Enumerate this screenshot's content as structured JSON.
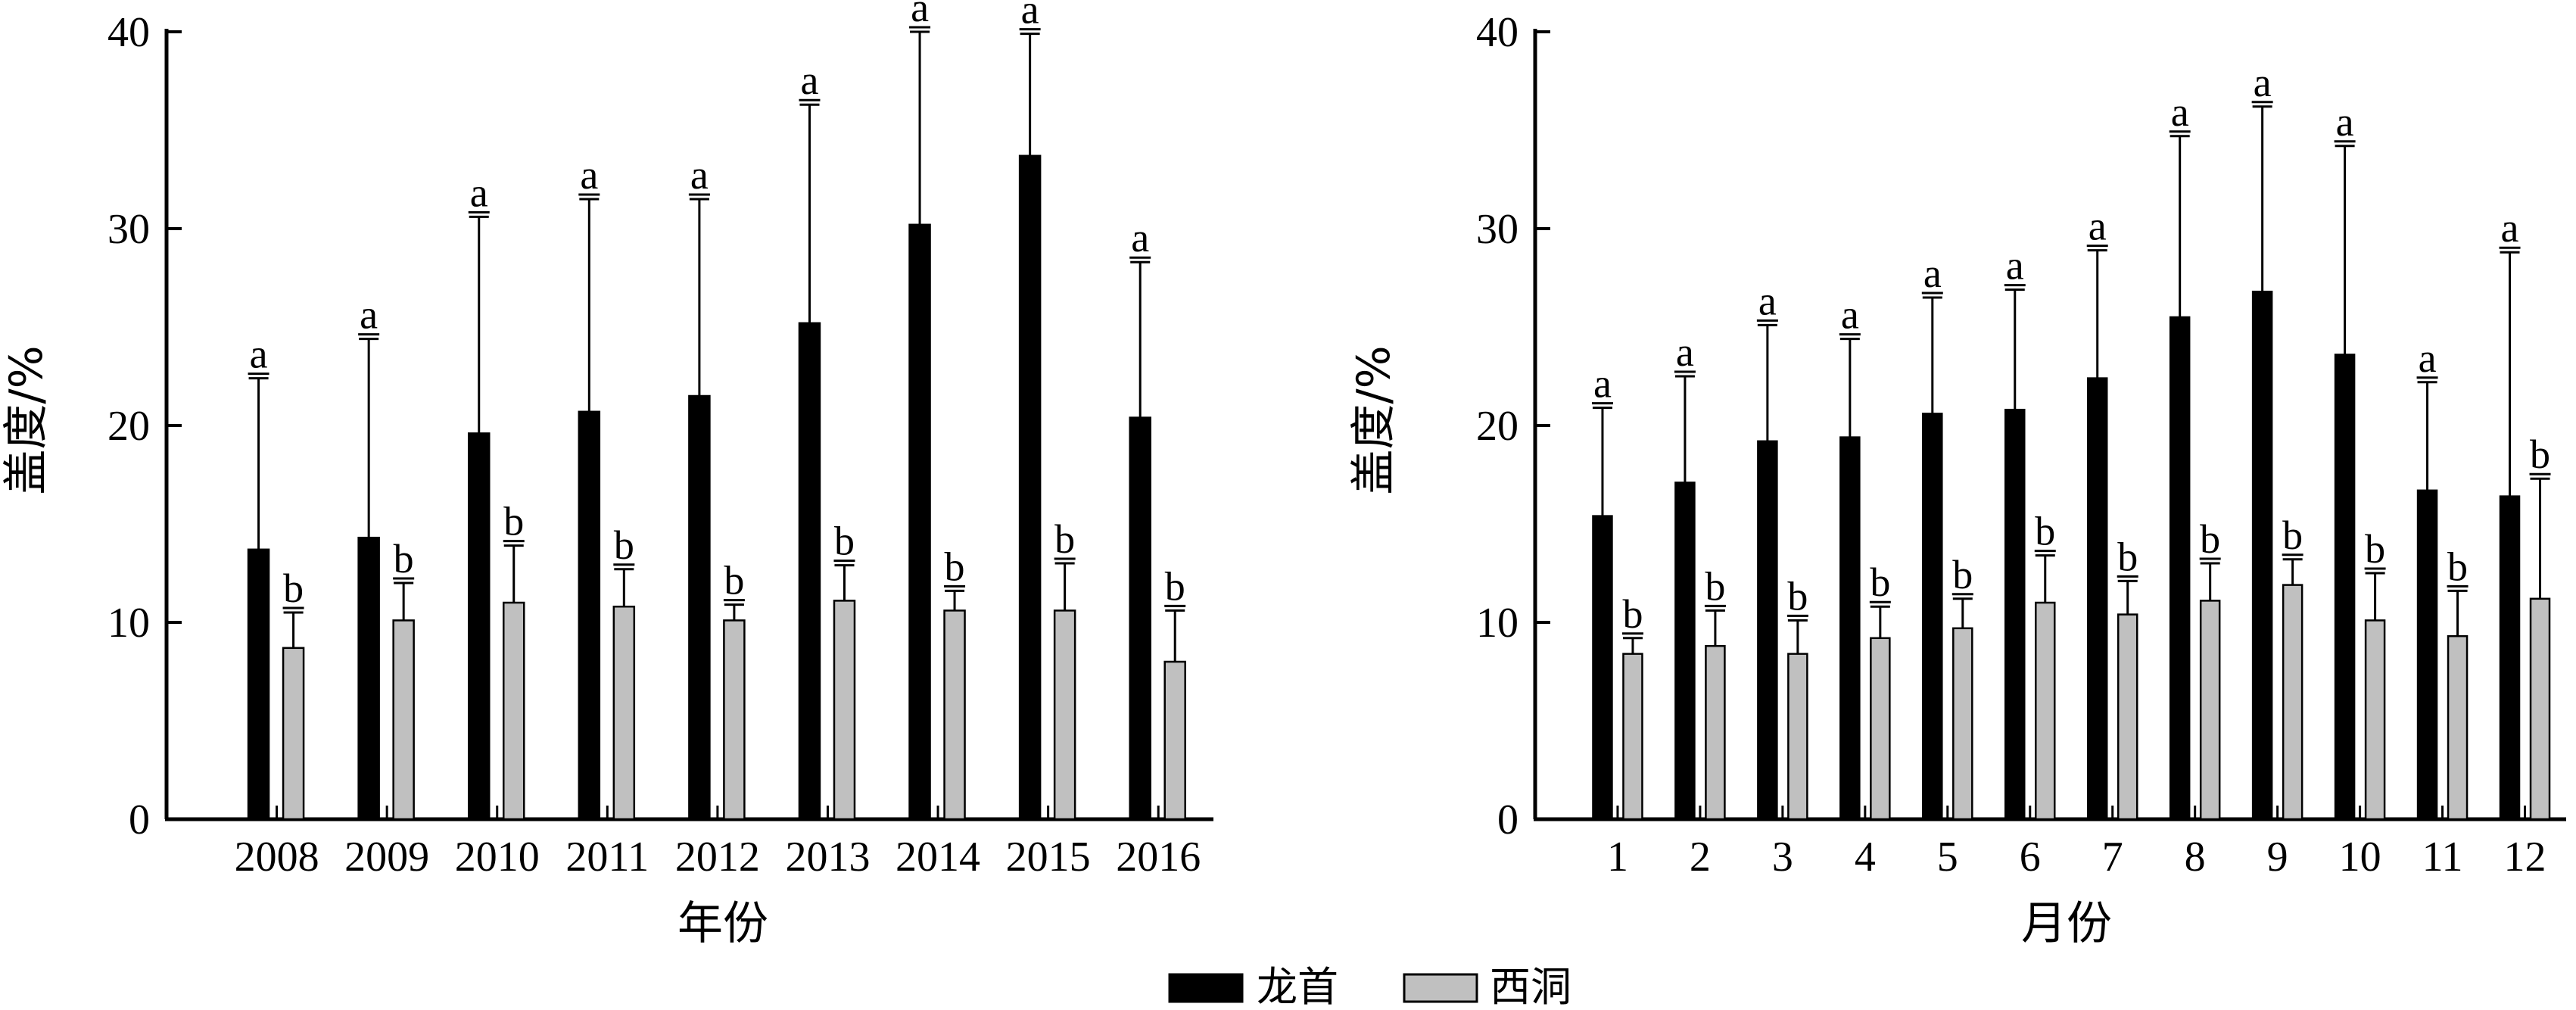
{
  "chart_data": [
    {
      "type": "bar",
      "xlabel": "年份",
      "ylabel": "盖度/%",
      "ylim": [
        0,
        40
      ],
      "yticks": [
        0,
        10,
        20,
        30,
        40
      ],
      "error_bars": "upper",
      "categories": [
        "2008",
        "2009",
        "2010",
        "2011",
        "2012",
        "2013",
        "2014",
        "2015",
        "2016"
      ],
      "series": [
        {
          "name": "龙首",
          "color": "#000000",
          "values": [
            13.7,
            14.3,
            19.6,
            20.7,
            21.5,
            25.2,
            30.2,
            33.7,
            20.4
          ],
          "error": [
            8.7,
            10.1,
            11.0,
            10.8,
            10.0,
            11.1,
            9.8,
            6.2,
            7.9
          ],
          "labels": [
            "a",
            "a",
            "a",
            "a",
            "a",
            "a",
            "a",
            "a",
            "a"
          ]
        },
        {
          "name": "西洞",
          "color": "#c0c0c0",
          "values": [
            8.7,
            10.1,
            11.0,
            10.8,
            10.1,
            11.1,
            10.6,
            10.6,
            8.0
          ],
          "error": [
            1.8,
            1.9,
            2.9,
            1.9,
            0.8,
            1.8,
            1.0,
            2.4,
            2.6
          ],
          "labels": [
            "b",
            "b",
            "b",
            "b",
            "b",
            "b",
            "b",
            "b",
            "b"
          ]
        }
      ]
    },
    {
      "type": "bar",
      "xlabel": "月份",
      "ylabel": "盖度/%",
      "ylim": [
        0,
        40
      ],
      "yticks": [
        0,
        10,
        20,
        30,
        40
      ],
      "error_bars": "upper",
      "categories": [
        "1",
        "2",
        "3",
        "4",
        "5",
        "6",
        "7",
        "8",
        "9",
        "10",
        "11",
        "12"
      ],
      "series": [
        {
          "name": "龙首",
          "color": "#000000",
          "values": [
            15.4,
            17.1,
            19.2,
            19.4,
            20.6,
            20.8,
            22.4,
            25.5,
            26.8,
            23.6,
            16.7,
            16.4
          ],
          "error": [
            5.5,
            5.4,
            5.9,
            5.0,
            5.9,
            6.1,
            6.5,
            9.2,
            9.4,
            10.6,
            5.5,
            12.4
          ],
          "labels": [
            "a",
            "a",
            "a",
            "a",
            "a",
            "a",
            "a",
            "a",
            "a",
            "a",
            "a",
            "a"
          ]
        },
        {
          "name": "西洞",
          "color": "#c0c0c0",
          "values": [
            8.4,
            8.8,
            8.4,
            9.2,
            9.7,
            11.0,
            10.4,
            11.1,
            11.9,
            10.1,
            9.3,
            11.2
          ],
          "error": [
            0.8,
            1.8,
            1.7,
            1.6,
            1.5,
            2.4,
            1.7,
            1.9,
            1.3,
            2.4,
            2.3,
            6.1
          ],
          "labels": [
            "b",
            "b",
            "b",
            "b",
            "b",
            "b",
            "b",
            "b",
            "b",
            "b",
            "b",
            "b"
          ]
        }
      ]
    }
  ],
  "legend": {
    "placement": "bottom-center",
    "items": [
      {
        "label": "龙首",
        "color": "#000000"
      },
      {
        "label": "西洞",
        "color": "#c0c0c0"
      }
    ]
  }
}
